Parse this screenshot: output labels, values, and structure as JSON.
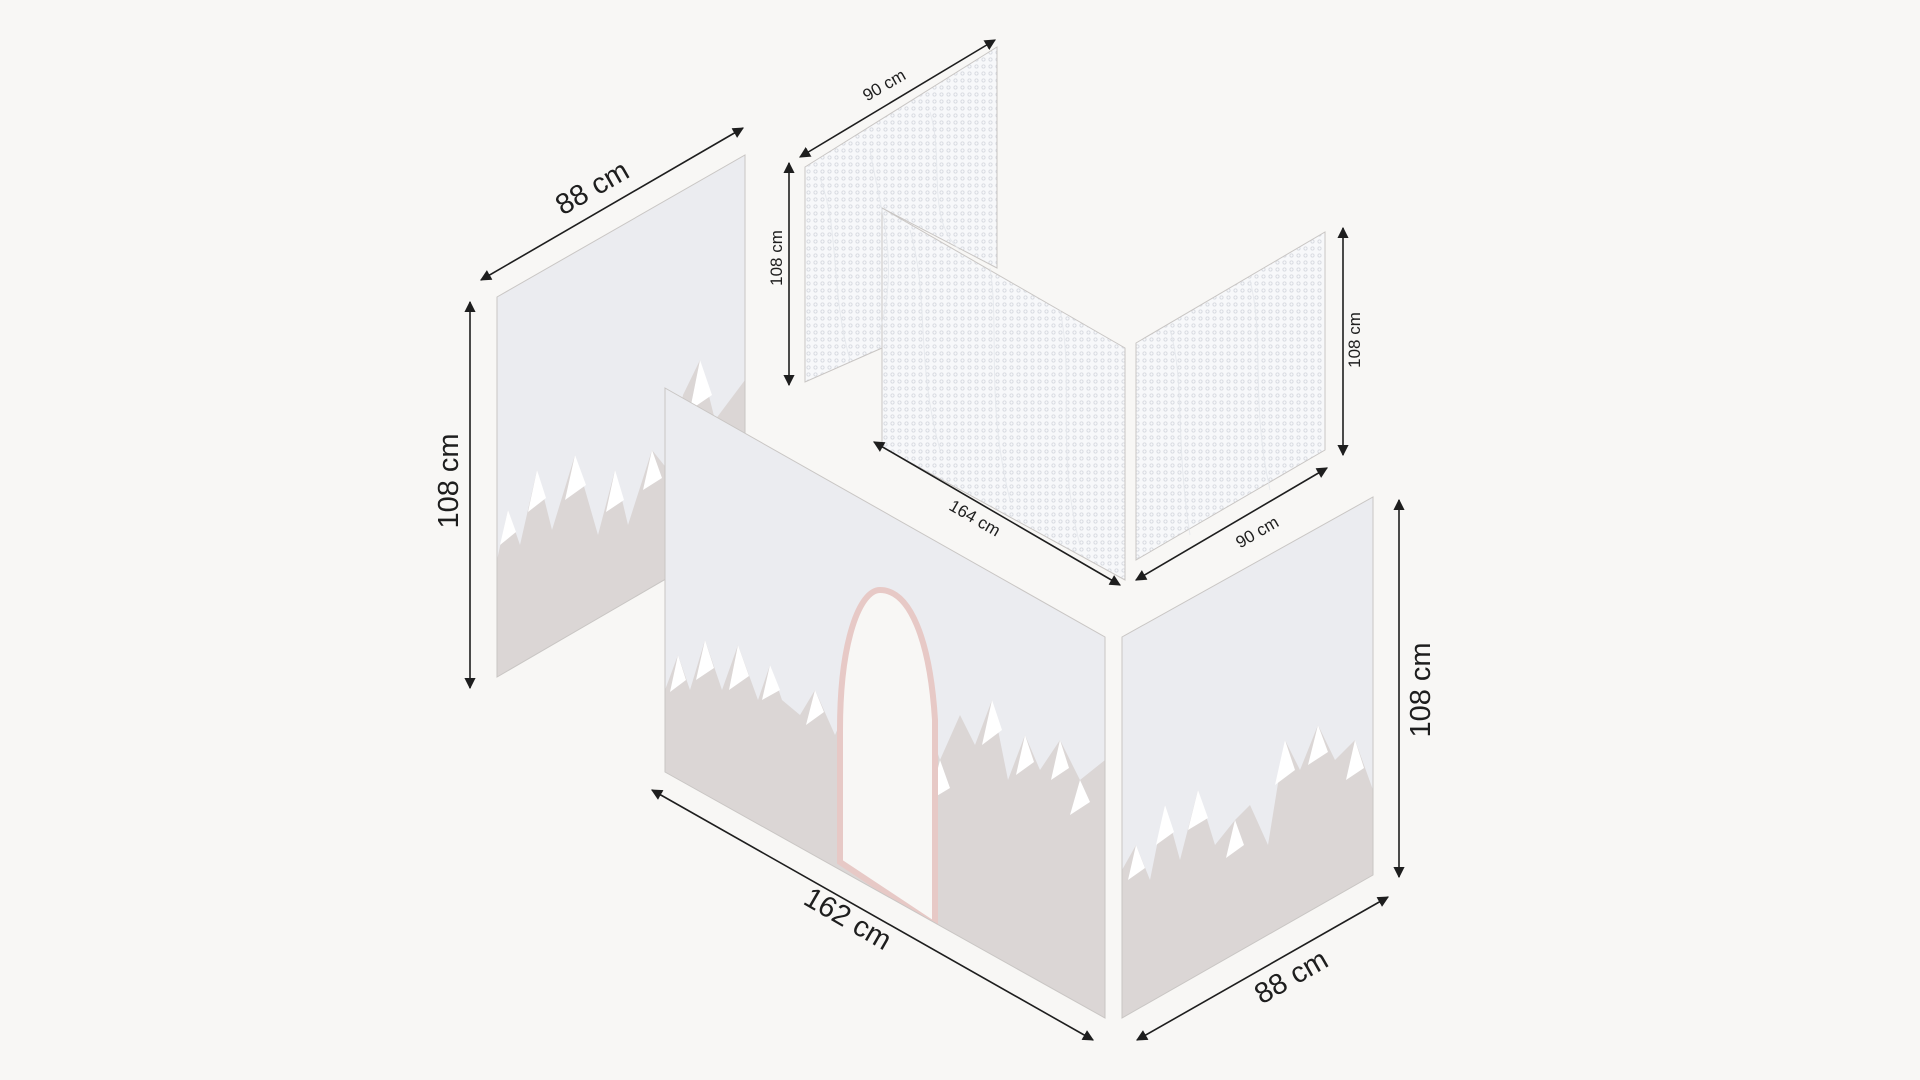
{
  "colors": {
    "background": "#f8f7f5",
    "sky": "#ebecf0",
    "mountain": "#dbd6d5",
    "snow": "#ffffff",
    "arch_trim": "#e7c9c6",
    "mesh": "#dcdfe5",
    "line": "#1e1e1e"
  },
  "dimensions": {
    "left_width": "88 cm",
    "left_height": "108 cm",
    "front_width": "162 cm",
    "right_width": "88 cm",
    "right_height": "108 cm",
    "mesh_back_width": "90 cm",
    "mesh_back_height": "108 cm",
    "mesh_mid_width": "164 cm",
    "mesh_right_width": "90 cm",
    "mesh_right_height": "108 cm"
  }
}
